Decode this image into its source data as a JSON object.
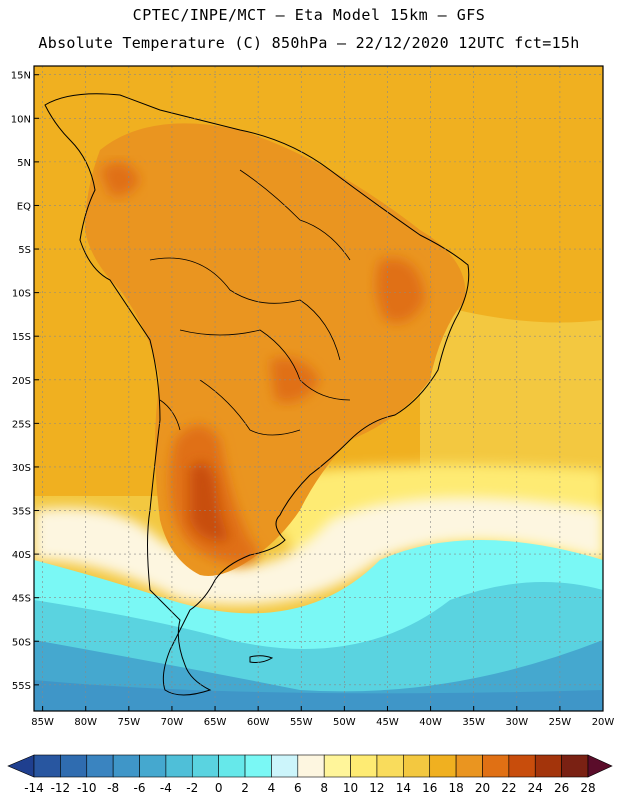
{
  "header": {
    "line1": "CPTEC/INPE/MCT –  Eta Model 15km – GFS",
    "line2": "Absolute Temperature (C) 850hPa – 22/12/2020 12UTC fct=15h"
  },
  "map": {
    "region": "South America",
    "lat_labels": [
      "15N",
      "10N",
      "5N",
      "EQ",
      "5S",
      "10S",
      "15S",
      "20S",
      "25S",
      "30S",
      "35S",
      "40S",
      "45S",
      "50S",
      "55S"
    ],
    "lon_labels": [
      "85W",
      "80W",
      "75W",
      "70W",
      "65W",
      "60W",
      "55W",
      "50W",
      "45W",
      "40W",
      "35W",
      "30W",
      "25W",
      "20W"
    ],
    "lat_range": [
      -58,
      16
    ],
    "lon_range": [
      -86,
      -20
    ]
  },
  "colorbar": {
    "labels": [
      "-14",
      "-12",
      "-10",
      "-8",
      "-6",
      "-4",
      "-2",
      "0",
      "2",
      "4",
      "6",
      "8",
      "10",
      "12",
      "14",
      "16",
      "18",
      "20",
      "22",
      "24",
      "26",
      "28"
    ],
    "colors": [
      "#1f3f8f",
      "#2856a0",
      "#2f6cb0",
      "#3a84c0",
      "#3f96c8",
      "#45a8cf",
      "#4fbfd8",
      "#5ad3e0",
      "#66e8ea",
      "#7af8f5",
      "#ccf5fb",
      "#fdf6e0",
      "#fff59a",
      "#feeb73",
      "#f9dc5c",
      "#f3c840",
      "#f0b020",
      "#ea9520",
      "#e07014",
      "#c84d0c",
      "#a3340b",
      "#7a2113",
      "#5a0c2a"
    ]
  },
  "temperature_fields": [
    {
      "name": "pacific-north",
      "color": "#f0b020"
    },
    {
      "name": "continent",
      "color": "#ea9520"
    },
    {
      "name": "hot-core",
      "color": "#e07014"
    },
    {
      "name": "cool-zone",
      "color": "#fff59a"
    },
    {
      "name": "cold-zone",
      "color": "#66e8ea"
    },
    {
      "name": "south-cold",
      "color": "#4fbfd8"
    }
  ]
}
